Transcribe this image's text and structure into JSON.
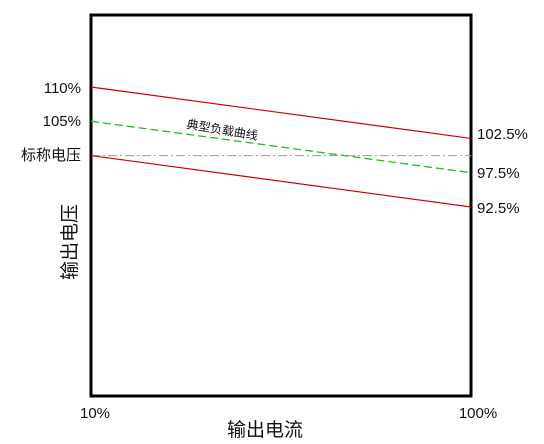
{
  "chart_data": {
    "type": "line",
    "title": "",
    "xlabel": "输出电流",
    "ylabel": "输出电压",
    "x_ticks": [
      "10%",
      "100%"
    ],
    "x": [
      10,
      100
    ],
    "xlim": [
      10,
      100
    ],
    "y_ticks_left": [
      {
        "value": 110,
        "label": "110%"
      },
      {
        "value": 105,
        "label": "105%"
      },
      {
        "value": 100,
        "label": "标称电压"
      }
    ],
    "y_ticks_right": [
      {
        "value": 102.5,
        "label": "102.5%"
      },
      {
        "value": 97.5,
        "label": "97.5%"
      },
      {
        "value": 92.5,
        "label": "92.5%"
      }
    ],
    "series": [
      {
        "values": [
          110,
          102.5
        ],
        "color": "#cc0000",
        "style": "solid"
      },
      {
        "name": "典型负载曲线",
        "values": [
          105,
          97.5
        ],
        "color": "#22bb22",
        "style": "dashed"
      },
      {
        "values": [
          100,
          92.5
        ],
        "color": "#cc0000",
        "style": "solid"
      }
    ],
    "reference_lines": [
      {
        "value": 100,
        "color": "#9a9a9a",
        "style": "dash-dot"
      }
    ],
    "annotation": "典型负载曲线",
    "grid": false,
    "legend": "none"
  }
}
